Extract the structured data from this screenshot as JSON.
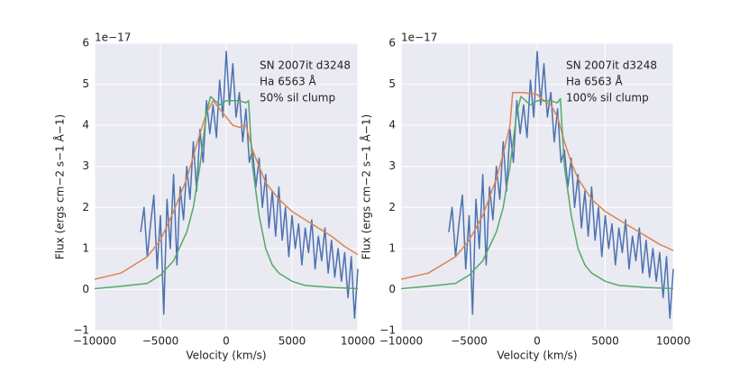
{
  "chart_data": [
    {
      "type": "line",
      "offset_text": "1e−17",
      "xlabel": "Velocity (km/s)",
      "ylabel": "Flux (ergs  cm−2  s−1  Å−1)",
      "annotations": [
        "SN 2007it d3248",
        "Ha 6563 Å",
        "50% sil clump"
      ],
      "xlim": [
        -10000,
        10000
      ],
      "ylim": [
        -1,
        6
      ],
      "xticks": [
        {
          "value": -10000,
          "label": "−10000"
        },
        {
          "value": -5000,
          "label": "−5000"
        },
        0,
        5000,
        10000
      ],
      "yticks": [
        {
          "value": -1,
          "label": "−1"
        },
        0,
        1,
        2,
        3,
        4,
        5,
        6
      ],
      "grid": true,
      "background": "#eaeaf2",
      "series": [
        {
          "color": "#4c72b0",
          "x": [
            -6500,
            -6250,
            -6000,
            -5750,
            -5500,
            -5250,
            -5000,
            -4750,
            -4500,
            -4250,
            -4000,
            -3750,
            -3500,
            -3250,
            -3000,
            -2750,
            -2500,
            -2250,
            -2000,
            -1750,
            -1500,
            -1250,
            -1000,
            -750,
            -500,
            -250,
            0,
            250,
            500,
            750,
            1000,
            1250,
            1500,
            1750,
            2000,
            2250,
            2500,
            2750,
            3000,
            3250,
            3500,
            3750,
            4000,
            4250,
            4500,
            4750,
            5000,
            5250,
            5500,
            5750,
            6000,
            6250,
            6500,
            6750,
            7000,
            7250,
            7500,
            7750,
            8000,
            8250,
            8500,
            8750,
            9000,
            9250,
            9500,
            9750,
            10000
          ],
          "values": [
            1.4,
            2.0,
            0.8,
            1.6,
            2.3,
            0.5,
            1.8,
            -0.6,
            2.2,
            1.0,
            2.8,
            0.6,
            2.5,
            1.7,
            3.0,
            2.2,
            3.6,
            2.4,
            3.9,
            3.1,
            4.6,
            3.8,
            4.5,
            3.7,
            5.1,
            4.2,
            5.8,
            4.5,
            5.5,
            4.2,
            4.8,
            3.6,
            4.4,
            3.1,
            3.4,
            2.5,
            3.2,
            2.0,
            2.8,
            1.5,
            2.4,
            1.3,
            2.5,
            1.2,
            2.0,
            0.8,
            1.8,
            1.0,
            1.6,
            0.6,
            1.5,
            0.9,
            1.7,
            0.5,
            1.3,
            0.7,
            1.5,
            0.4,
            1.2,
            0.3,
            1.0,
            0.2,
            0.9,
            -0.2,
            0.8,
            -0.7,
            0.5
          ]
        },
        {
          "color": "#dd8452",
          "x": [
            -10000,
            -8000,
            -6000,
            -5000,
            -4000,
            -3000,
            -2000,
            -1500,
            -1000,
            -500,
            0,
            500,
            1000,
            1500,
            2000,
            2500,
            3000,
            4000,
            5000,
            6000,
            7000,
            8000,
            9000,
            10000
          ],
          "values": [
            0.25,
            0.4,
            0.8,
            1.2,
            1.9,
            2.7,
            3.8,
            4.3,
            4.6,
            4.4,
            4.2,
            4.0,
            3.95,
            4.0,
            3.4,
            3.0,
            2.6,
            2.2,
            1.9,
            1.7,
            1.5,
            1.3,
            1.05,
            0.85
          ]
        },
        {
          "color": "#55a868",
          "x": [
            -10000,
            -8000,
            -6000,
            -5000,
            -4000,
            -3000,
            -2500,
            -2000,
            -1500,
            -1200,
            -500,
            0,
            500,
            1000,
            1500,
            1700,
            2000,
            2500,
            3000,
            3500,
            4000,
            5000,
            6000,
            8000,
            10000
          ],
          "values": [
            0.02,
            0.08,
            0.15,
            0.35,
            0.7,
            1.4,
            2.0,
            3.0,
            4.3,
            4.7,
            4.5,
            4.6,
            4.6,
            4.6,
            4.55,
            4.6,
            3.0,
            1.8,
            1.0,
            0.6,
            0.4,
            0.2,
            0.1,
            0.05,
            0.02
          ]
        }
      ]
    },
    {
      "type": "line",
      "offset_text": "1e−17",
      "xlabel": "Velocity (km/s)",
      "ylabel": "Flux (ergs  cm−2  s−1  Å−1)",
      "annotations": [
        "SN 2007it d3248",
        "Ha 6563 Å",
        "100% sil clump"
      ],
      "xlim": [
        -10000,
        10000
      ],
      "ylim": [
        -1,
        6
      ],
      "xticks": [
        {
          "value": -10000,
          "label": "−10000"
        },
        {
          "value": -5000,
          "label": "−5000"
        },
        0,
        5000,
        10000
      ],
      "yticks": [
        {
          "value": -1,
          "label": "−1"
        },
        0,
        1,
        2,
        3,
        4,
        5,
        6
      ],
      "grid": true,
      "background": "#eaeaf2",
      "series": [
        {
          "color": "#4c72b0",
          "x": [
            -6500,
            -6250,
            -6000,
            -5750,
            -5500,
            -5250,
            -5000,
            -4750,
            -4500,
            -4250,
            -4000,
            -3750,
            -3500,
            -3250,
            -3000,
            -2750,
            -2500,
            -2250,
            -2000,
            -1750,
            -1500,
            -1250,
            -1000,
            -750,
            -500,
            -250,
            0,
            250,
            500,
            750,
            1000,
            1250,
            1500,
            1750,
            2000,
            2250,
            2500,
            2750,
            3000,
            3250,
            3500,
            3750,
            4000,
            4250,
            4500,
            4750,
            5000,
            5250,
            5500,
            5750,
            6000,
            6250,
            6500,
            6750,
            7000,
            7250,
            7500,
            7750,
            8000,
            8250,
            8500,
            8750,
            9000,
            9250,
            9500,
            9750,
            10000
          ],
          "values": [
            1.4,
            2.0,
            0.8,
            1.6,
            2.3,
            0.5,
            1.8,
            -0.6,
            2.2,
            1.0,
            2.8,
            0.6,
            2.5,
            1.7,
            3.0,
            2.2,
            3.6,
            2.4,
            3.9,
            3.1,
            4.6,
            3.8,
            4.5,
            3.7,
            5.1,
            4.2,
            5.8,
            4.5,
            5.5,
            4.2,
            4.8,
            3.6,
            4.4,
            3.1,
            3.4,
            2.5,
            3.2,
            2.0,
            2.8,
            1.5,
            2.4,
            1.3,
            2.5,
            1.2,
            2.0,
            0.8,
            1.8,
            1.0,
            1.6,
            0.6,
            1.5,
            0.9,
            1.7,
            0.5,
            1.3,
            0.7,
            1.5,
            0.4,
            1.2,
            0.3,
            1.0,
            0.2,
            0.9,
            -0.2,
            0.8,
            -0.7,
            0.5
          ]
        },
        {
          "color": "#dd8452",
          "x": [
            -10000,
            -8000,
            -6000,
            -5000,
            -4000,
            -3000,
            -2500,
            -2000,
            -1800,
            -1000,
            0,
            500,
            1000,
            1500,
            2000,
            2500,
            3000,
            4000,
            5000,
            6000,
            7000,
            8000,
            9000,
            10000
          ],
          "values": [
            0.25,
            0.4,
            0.8,
            1.2,
            1.8,
            2.7,
            3.3,
            4.0,
            4.8,
            4.8,
            4.75,
            4.6,
            4.5,
            4.2,
            3.6,
            3.1,
            2.7,
            2.2,
            1.9,
            1.7,
            1.5,
            1.3,
            1.1,
            0.95
          ]
        },
        {
          "color": "#55a868",
          "x": [
            -10000,
            -8000,
            -6000,
            -5000,
            -4000,
            -3000,
            -2500,
            -2000,
            -1500,
            -1200,
            -500,
            0,
            500,
            1000,
            1500,
            1700,
            2000,
            2500,
            3000,
            3500,
            4000,
            5000,
            6000,
            8000,
            10000
          ],
          "values": [
            0.02,
            0.08,
            0.15,
            0.35,
            0.7,
            1.4,
            2.0,
            3.0,
            4.3,
            4.7,
            4.5,
            4.6,
            4.6,
            4.6,
            4.55,
            4.65,
            3.0,
            1.8,
            1.0,
            0.6,
            0.4,
            0.2,
            0.1,
            0.05,
            0.02
          ]
        }
      ]
    }
  ]
}
